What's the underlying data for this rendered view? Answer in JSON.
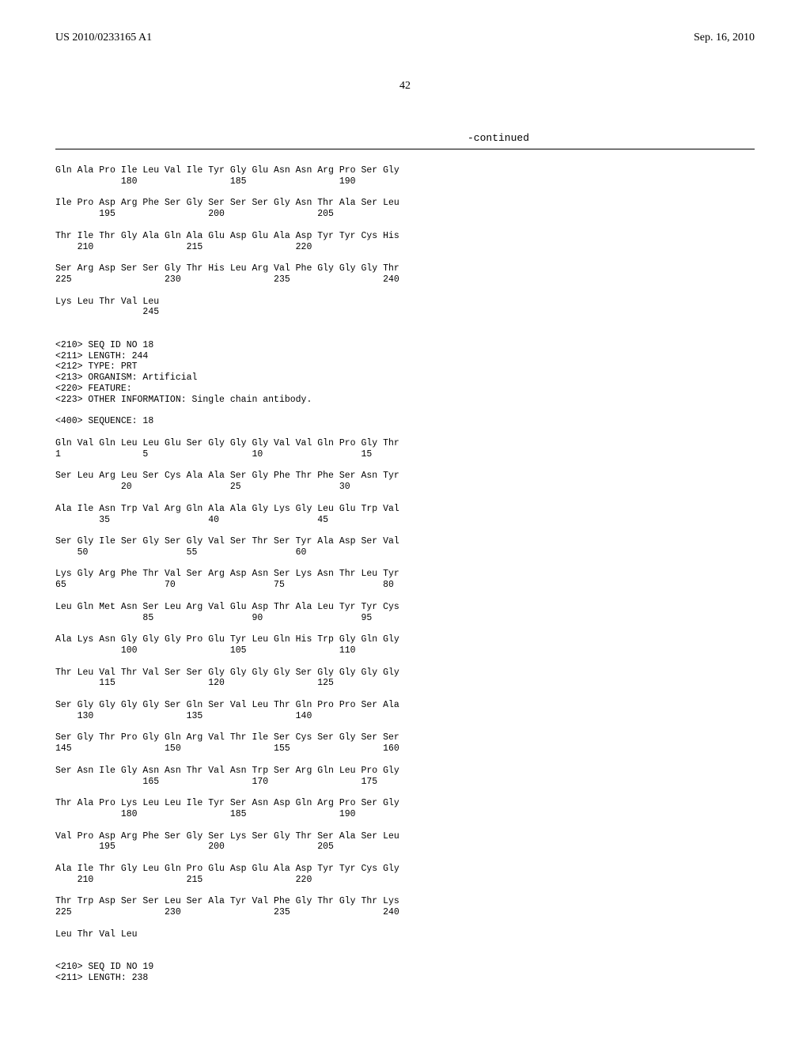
{
  "header": {
    "publication_number": "US 2010/0233165 A1",
    "publication_date": "Sep. 16, 2010"
  },
  "page_number": "42",
  "continued_label": "-continued",
  "sequence_blocks": [
    {
      "lines": [
        "Gln Ala Pro Ile Leu Val Ile Tyr Gly Glu Asn Asn Arg Pro Ser Gly",
        "            180                 185                 190"
      ]
    },
    {
      "lines": [
        "Ile Pro Asp Arg Phe Ser Gly Ser Ser Ser Gly Asn Thr Ala Ser Leu",
        "        195                 200                 205"
      ]
    },
    {
      "lines": [
        "Thr Ile Thr Gly Ala Gln Ala Glu Asp Glu Ala Asp Tyr Tyr Cys His",
        "    210                 215                 220"
      ]
    },
    {
      "lines": [
        "Ser Arg Asp Ser Ser Gly Thr His Leu Arg Val Phe Gly Gly Gly Thr",
        "225                 230                 235                 240"
      ]
    },
    {
      "lines": [
        "Lys Leu Thr Val Leu",
        "                245"
      ]
    }
  ],
  "seq_header": [
    "<210> SEQ ID NO 18",
    "<211> LENGTH: 244",
    "<212> TYPE: PRT",
    "<213> ORGANISM: Artificial",
    "<220> FEATURE:",
    "<223> OTHER INFORMATION: Single chain antibody."
  ],
  "seq_marker": "<400> SEQUENCE: 18",
  "sequence_blocks_2": [
    {
      "lines": [
        "Gln Val Gln Leu Leu Glu Ser Gly Gly Gly Val Val Gln Pro Gly Thr",
        "1               5                   10                  15"
      ]
    },
    {
      "lines": [
        "Ser Leu Arg Leu Ser Cys Ala Ala Ser Gly Phe Thr Phe Ser Asn Tyr",
        "            20                  25                  30"
      ]
    },
    {
      "lines": [
        "Ala Ile Asn Trp Val Arg Gln Ala Ala Gly Lys Gly Leu Glu Trp Val",
        "        35                  40                  45"
      ]
    },
    {
      "lines": [
        "Ser Gly Ile Ser Gly Ser Gly Val Ser Thr Ser Tyr Ala Asp Ser Val",
        "    50                  55                  60"
      ]
    },
    {
      "lines": [
        "Lys Gly Arg Phe Thr Val Ser Arg Asp Asn Ser Lys Asn Thr Leu Tyr",
        "65                  70                  75                  80"
      ]
    },
    {
      "lines": [
        "Leu Gln Met Asn Ser Leu Arg Val Glu Asp Thr Ala Leu Tyr Tyr Cys",
        "                85                  90                  95"
      ]
    },
    {
      "lines": [
        "Ala Lys Asn Gly Gly Gly Pro Glu Tyr Leu Gln His Trp Gly Gln Gly",
        "            100                 105                 110"
      ]
    },
    {
      "lines": [
        "Thr Leu Val Thr Val Ser Ser Gly Gly Gly Gly Ser Gly Gly Gly Gly",
        "        115                 120                 125"
      ]
    },
    {
      "lines": [
        "Ser Gly Gly Gly Gly Ser Gln Ser Val Leu Thr Gln Pro Pro Ser Ala",
        "    130                 135                 140"
      ]
    },
    {
      "lines": [
        "Ser Gly Thr Pro Gly Gln Arg Val Thr Ile Ser Cys Ser Gly Ser Ser",
        "145                 150                 155                 160"
      ]
    },
    {
      "lines": [
        "Ser Asn Ile Gly Asn Asn Thr Val Asn Trp Ser Arg Gln Leu Pro Gly",
        "                165                 170                 175"
      ]
    },
    {
      "lines": [
        "Thr Ala Pro Lys Leu Leu Ile Tyr Ser Asn Asp Gln Arg Pro Ser Gly",
        "            180                 185                 190"
      ]
    },
    {
      "lines": [
        "Val Pro Asp Arg Phe Ser Gly Ser Lys Ser Gly Thr Ser Ala Ser Leu",
        "        195                 200                 205"
      ]
    },
    {
      "lines": [
        "Ala Ile Thr Gly Leu Gln Pro Glu Asp Glu Ala Asp Tyr Tyr Cys Gly",
        "    210                 215                 220"
      ]
    },
    {
      "lines": [
        "Thr Trp Asp Ser Ser Leu Ser Ala Tyr Val Phe Gly Thr Gly Thr Lys",
        "225                 230                 235                 240"
      ]
    },
    {
      "lines": [
        "Leu Thr Val Leu"
      ]
    }
  ],
  "seq_footer": [
    "<210> SEQ ID NO 19",
    "<211> LENGTH: 238"
  ]
}
